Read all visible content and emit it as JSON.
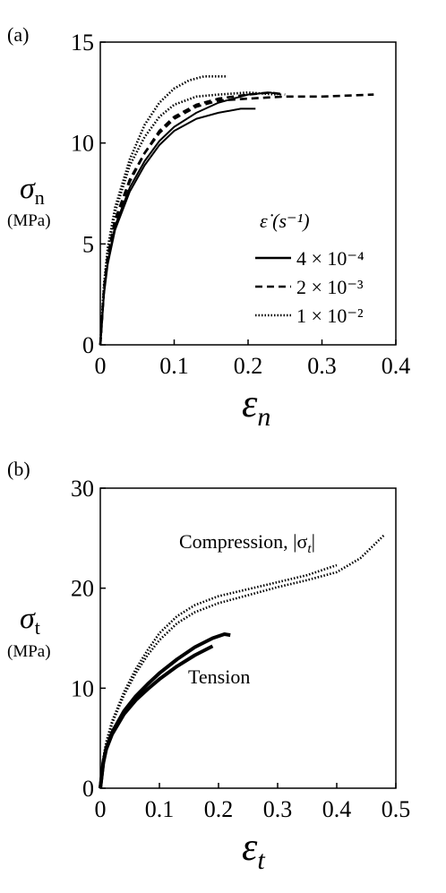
{
  "chart_data": [
    {
      "type": "line",
      "panel_label": "(a)",
      "ylabel": {
        "symbol": "σ",
        "subscript": "n",
        "unit": "(MPa)"
      },
      "xlabel": {
        "symbol": "ε",
        "subscript": "n"
      },
      "xlim": [
        0,
        0.4
      ],
      "ylim": [
        0,
        15
      ],
      "xticks": [
        "0",
        "0.1",
        "0.2",
        "0.3",
        "0.4"
      ],
      "yticks": [
        "0",
        "5",
        "10",
        "15"
      ],
      "grid": false,
      "legend": {
        "position": "center-right",
        "title": "ε̇ (s⁻¹)",
        "entries": [
          {
            "style": "solid",
            "label": "4 × 10⁻⁴"
          },
          {
            "style": "dashed",
            "label": "2 × 10⁻³"
          },
          {
            "style": "dotted",
            "label": "1 × 10⁻²"
          }
        ]
      },
      "series": [
        {
          "style": "solid",
          "x": [
            0,
            0.005,
            0.01,
            0.02,
            0.04,
            0.06,
            0.08,
            0.1,
            0.13,
            0.16,
            0.19,
            0.21
          ],
          "y": [
            0,
            2.5,
            4.0,
            5.7,
            7.6,
            8.9,
            9.9,
            10.6,
            11.2,
            11.5,
            11.7,
            11.7
          ]
        },
        {
          "style": "solid",
          "x": [
            0,
            0.005,
            0.01,
            0.02,
            0.04,
            0.06,
            0.08,
            0.1,
            0.13,
            0.16,
            0.2,
            0.23,
            0.245
          ],
          "y": [
            0,
            2.6,
            4.1,
            5.9,
            7.8,
            9.1,
            10.1,
            10.8,
            11.5,
            12.0,
            12.4,
            12.5,
            12.4
          ]
        },
        {
          "style": "dashed",
          "x": [
            0,
            0.005,
            0.01,
            0.02,
            0.04,
            0.06,
            0.08,
            0.1,
            0.13,
            0.16,
            0.2,
            0.25,
            0.3,
            0.37
          ],
          "y": [
            0,
            2.8,
            4.4,
            6.2,
            8.2,
            9.5,
            10.5,
            11.2,
            11.8,
            12.1,
            12.2,
            12.3,
            12.3,
            12.4
          ]
        },
        {
          "style": "dashed",
          "x": [
            0,
            0.005,
            0.01,
            0.02,
            0.04,
            0.06,
            0.08,
            0.1,
            0.13,
            0.16,
            0.2,
            0.23,
            0.25
          ],
          "y": [
            0,
            2.7,
            4.3,
            6.1,
            8.1,
            9.5,
            10.6,
            11.3,
            11.9,
            12.2,
            12.4,
            12.5,
            12.4
          ]
        },
        {
          "style": "dotted",
          "x": [
            0,
            0.005,
            0.01,
            0.02,
            0.04,
            0.06,
            0.08,
            0.1,
            0.12,
            0.14,
            0.17
          ],
          "y": [
            0,
            3.0,
            4.8,
            6.8,
            9.2,
            10.9,
            12.0,
            12.7,
            13.1,
            13.3,
            13.3
          ]
        },
        {
          "style": "dotted",
          "x": [
            0,
            0.005,
            0.01,
            0.02,
            0.04,
            0.06,
            0.08,
            0.1,
            0.13,
            0.16,
            0.2,
            0.24
          ],
          "y": [
            0,
            2.9,
            4.6,
            6.6,
            8.9,
            10.3,
            11.3,
            11.9,
            12.3,
            12.4,
            12.5,
            12.4
          ]
        }
      ]
    },
    {
      "type": "line",
      "panel_label": "(b)",
      "ylabel": {
        "symbol": "σ",
        "subscript": "t",
        "unit": "(MPa)"
      },
      "xlabel": {
        "symbol": "ε",
        "subscript": "t"
      },
      "xlim": [
        0,
        0.5
      ],
      "ylim": [
        0,
        30
      ],
      "xticks": [
        "0",
        "0.1",
        "0.2",
        "0.3",
        "0.4",
        "0.5"
      ],
      "yticks": [
        "0",
        "10",
        "20",
        "30"
      ],
      "grid": false,
      "annotations": [
        {
          "text_main": "Compression, |σ",
          "text_sub": "t",
          "text_end": "|"
        },
        {
          "text": "Tension"
        }
      ],
      "series": [
        {
          "style": "bold-solid",
          "x": [
            0,
            0.005,
            0.01,
            0.02,
            0.04,
            0.06,
            0.08,
            0.1,
            0.13,
            0.16,
            0.19
          ],
          "y": [
            0,
            2.5,
            3.9,
            5.4,
            7.4,
            8.8,
            9.9,
            10.9,
            12.2,
            13.3,
            14.2
          ]
        },
        {
          "style": "bold-solid",
          "x": [
            0,
            0.005,
            0.01,
            0.02,
            0.04,
            0.06,
            0.08,
            0.1,
            0.13,
            0.16,
            0.19,
            0.21,
            0.22
          ],
          "y": [
            0,
            2.6,
            4.0,
            5.6,
            7.7,
            9.2,
            10.4,
            11.5,
            12.9,
            14.1,
            15.0,
            15.4,
            15.3
          ]
        },
        {
          "style": "dotted",
          "x": [
            0,
            0.005,
            0.01,
            0.02,
            0.04,
            0.06,
            0.08,
            0.1,
            0.13,
            0.16,
            0.2,
            0.25,
            0.3,
            0.35,
            0.4
          ],
          "y": [
            0,
            3.0,
            4.6,
            6.7,
            9.6,
            11.9,
            13.8,
            15.5,
            17.2,
            18.3,
            19.2,
            19.9,
            20.6,
            21.3,
            22.3
          ]
        },
        {
          "style": "dotted",
          "x": [
            0,
            0.005,
            0.01,
            0.02,
            0.04,
            0.06,
            0.08,
            0.1,
            0.13,
            0.16,
            0.2,
            0.25,
            0.3,
            0.35,
            0.4,
            0.44,
            0.48
          ],
          "y": [
            0,
            2.9,
            4.4,
            6.5,
            9.3,
            11.5,
            13.3,
            14.8,
            16.5,
            17.6,
            18.5,
            19.3,
            20.1,
            20.8,
            21.6,
            23.0,
            25.3
          ]
        }
      ]
    }
  ]
}
